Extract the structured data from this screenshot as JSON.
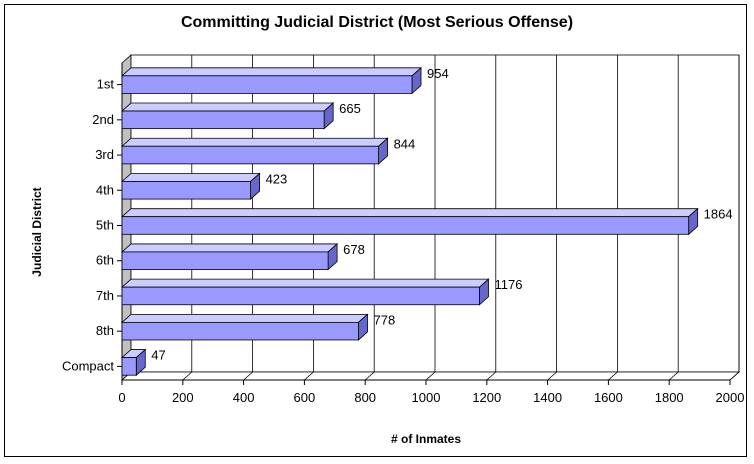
{
  "chart_data": {
    "type": "bar",
    "orientation": "horizontal",
    "title": "Committing Judicial District (Most Serious Offense)",
    "xlabel": "# of Inmates",
    "ylabel": "Judicial District",
    "categories": [
      "1st",
      "2nd",
      "3rd",
      "4th",
      "5th",
      "6th",
      "7th",
      "8th",
      "Compact"
    ],
    "values": [
      954,
      665,
      844,
      423,
      1864,
      678,
      1176,
      778,
      47
    ],
    "xlim": [
      0,
      2000
    ],
    "xticks": [
      0,
      200,
      400,
      600,
      800,
      1000,
      1200,
      1400,
      1600,
      1800,
      2000
    ],
    "grid": true,
    "legend": "none",
    "bar_color": "#9999ff",
    "bar_top_color": "#ccccff",
    "bar_side_color": "#6666cc",
    "wall_color": "#c0c0c0"
  }
}
